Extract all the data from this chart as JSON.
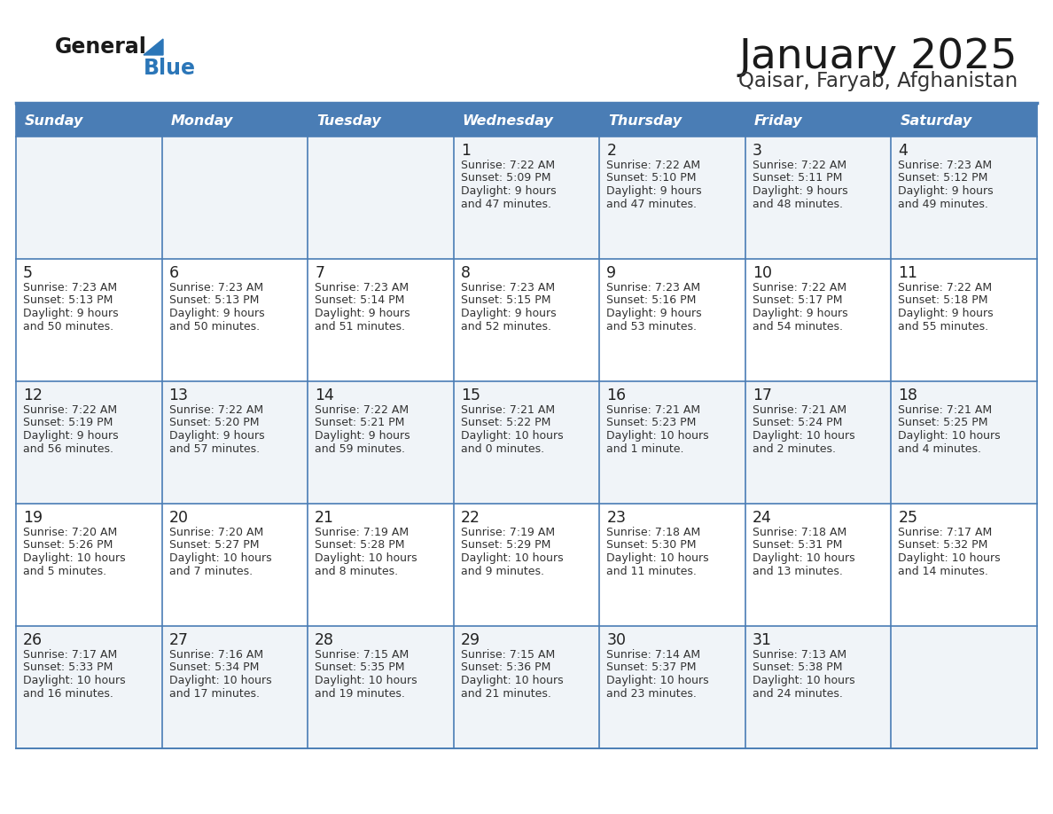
{
  "title": "January 2025",
  "subtitle": "Qaisar, Faryab, Afghanistan",
  "days_of_week": [
    "Sunday",
    "Monday",
    "Tuesday",
    "Wednesday",
    "Thursday",
    "Friday",
    "Saturday"
  ],
  "header_bg": "#4A7DB5",
  "header_text": "#FFFFFF",
  "row_bg_odd": "#F0F4F8",
  "row_bg_even": "#FFFFFF",
  "border_color": "#4A7DB5",
  "day_number_color": "#222222",
  "info_text_color": "#333333",
  "title_color": "#1a1a1a",
  "subtitle_color": "#333333",
  "logo_general_color": "#1a1a1a",
  "logo_blue_color": "#2B76B8",
  "calendar_data": [
    [
      null,
      null,
      null,
      {
        "day": 1,
        "sunrise": "7:22 AM",
        "sunset": "5:09 PM",
        "daylight_h": "9 hours",
        "daylight_m": "and 47 minutes."
      },
      {
        "day": 2,
        "sunrise": "7:22 AM",
        "sunset": "5:10 PM",
        "daylight_h": "9 hours",
        "daylight_m": "and 47 minutes."
      },
      {
        "day": 3,
        "sunrise": "7:22 AM",
        "sunset": "5:11 PM",
        "daylight_h": "9 hours",
        "daylight_m": "and 48 minutes."
      },
      {
        "day": 4,
        "sunrise": "7:23 AM",
        "sunset": "5:12 PM",
        "daylight_h": "9 hours",
        "daylight_m": "and 49 minutes."
      }
    ],
    [
      {
        "day": 5,
        "sunrise": "7:23 AM",
        "sunset": "5:13 PM",
        "daylight_h": "9 hours",
        "daylight_m": "and 50 minutes."
      },
      {
        "day": 6,
        "sunrise": "7:23 AM",
        "sunset": "5:13 PM",
        "daylight_h": "9 hours",
        "daylight_m": "and 50 minutes."
      },
      {
        "day": 7,
        "sunrise": "7:23 AM",
        "sunset": "5:14 PM",
        "daylight_h": "9 hours",
        "daylight_m": "and 51 minutes."
      },
      {
        "day": 8,
        "sunrise": "7:23 AM",
        "sunset": "5:15 PM",
        "daylight_h": "9 hours",
        "daylight_m": "and 52 minutes."
      },
      {
        "day": 9,
        "sunrise": "7:23 AM",
        "sunset": "5:16 PM",
        "daylight_h": "9 hours",
        "daylight_m": "and 53 minutes."
      },
      {
        "day": 10,
        "sunrise": "7:22 AM",
        "sunset": "5:17 PM",
        "daylight_h": "9 hours",
        "daylight_m": "and 54 minutes."
      },
      {
        "day": 11,
        "sunrise": "7:22 AM",
        "sunset": "5:18 PM",
        "daylight_h": "9 hours",
        "daylight_m": "and 55 minutes."
      }
    ],
    [
      {
        "day": 12,
        "sunrise": "7:22 AM",
        "sunset": "5:19 PM",
        "daylight_h": "9 hours",
        "daylight_m": "and 56 minutes."
      },
      {
        "day": 13,
        "sunrise": "7:22 AM",
        "sunset": "5:20 PM",
        "daylight_h": "9 hours",
        "daylight_m": "and 57 minutes."
      },
      {
        "day": 14,
        "sunrise": "7:22 AM",
        "sunset": "5:21 PM",
        "daylight_h": "9 hours",
        "daylight_m": "and 59 minutes."
      },
      {
        "day": 15,
        "sunrise": "7:21 AM",
        "sunset": "5:22 PM",
        "daylight_h": "10 hours",
        "daylight_m": "and 0 minutes."
      },
      {
        "day": 16,
        "sunrise": "7:21 AM",
        "sunset": "5:23 PM",
        "daylight_h": "10 hours",
        "daylight_m": "and 1 minute."
      },
      {
        "day": 17,
        "sunrise": "7:21 AM",
        "sunset": "5:24 PM",
        "daylight_h": "10 hours",
        "daylight_m": "and 2 minutes."
      },
      {
        "day": 18,
        "sunrise": "7:21 AM",
        "sunset": "5:25 PM",
        "daylight_h": "10 hours",
        "daylight_m": "and 4 minutes."
      }
    ],
    [
      {
        "day": 19,
        "sunrise": "7:20 AM",
        "sunset": "5:26 PM",
        "daylight_h": "10 hours",
        "daylight_m": "and 5 minutes."
      },
      {
        "day": 20,
        "sunrise": "7:20 AM",
        "sunset": "5:27 PM",
        "daylight_h": "10 hours",
        "daylight_m": "and 7 minutes."
      },
      {
        "day": 21,
        "sunrise": "7:19 AM",
        "sunset": "5:28 PM",
        "daylight_h": "10 hours",
        "daylight_m": "and 8 minutes."
      },
      {
        "day": 22,
        "sunrise": "7:19 AM",
        "sunset": "5:29 PM",
        "daylight_h": "10 hours",
        "daylight_m": "and 9 minutes."
      },
      {
        "day": 23,
        "sunrise": "7:18 AM",
        "sunset": "5:30 PM",
        "daylight_h": "10 hours",
        "daylight_m": "and 11 minutes."
      },
      {
        "day": 24,
        "sunrise": "7:18 AM",
        "sunset": "5:31 PM",
        "daylight_h": "10 hours",
        "daylight_m": "and 13 minutes."
      },
      {
        "day": 25,
        "sunrise": "7:17 AM",
        "sunset": "5:32 PM",
        "daylight_h": "10 hours",
        "daylight_m": "and 14 minutes."
      }
    ],
    [
      {
        "day": 26,
        "sunrise": "7:17 AM",
        "sunset": "5:33 PM",
        "daylight_h": "10 hours",
        "daylight_m": "and 16 minutes."
      },
      {
        "day": 27,
        "sunrise": "7:16 AM",
        "sunset": "5:34 PM",
        "daylight_h": "10 hours",
        "daylight_m": "and 17 minutes."
      },
      {
        "day": 28,
        "sunrise": "7:15 AM",
        "sunset": "5:35 PM",
        "daylight_h": "10 hours",
        "daylight_m": "and 19 minutes."
      },
      {
        "day": 29,
        "sunrise": "7:15 AM",
        "sunset": "5:36 PM",
        "daylight_h": "10 hours",
        "daylight_m": "and 21 minutes."
      },
      {
        "day": 30,
        "sunrise": "7:14 AM",
        "sunset": "5:37 PM",
        "daylight_h": "10 hours",
        "daylight_m": "and 23 minutes."
      },
      {
        "day": 31,
        "sunrise": "7:13 AM",
        "sunset": "5:38 PM",
        "daylight_h": "10 hours",
        "daylight_m": "and 24 minutes."
      },
      null
    ]
  ]
}
